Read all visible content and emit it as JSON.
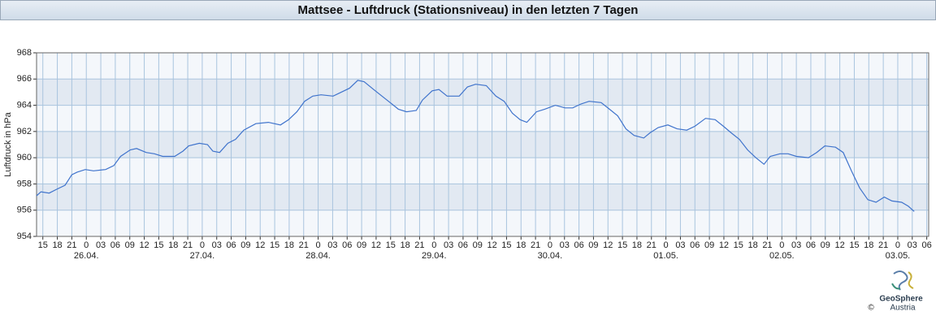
{
  "chart_data": {
    "type": "line",
    "title": "Mattsee - Luftdruck (Stationsniveau) in den letzten 7 Tagen",
    "y_label": "Luftdruck in hPa",
    "x": [
      13.7,
      14.6,
      16.3,
      17.9,
      19.6,
      21.0,
      22.1,
      23.8,
      25.5,
      28.0,
      29.7,
      31.1,
      33.1,
      34.4,
      36.4,
      38.1,
      39.8,
      42.3,
      44.0,
      45.2,
      47.4,
      49.1,
      50.2,
      51.6,
      53.3,
      54.9,
      56.6,
      59.1,
      61.7,
      64.2,
      65.9,
      67.6,
      69.2,
      70.9,
      72.6,
      75.1,
      76.8,
      78.5,
      80.2,
      81.5,
      83.5,
      85.2,
      86.9,
      88.6,
      90.3,
      92.3,
      93.6,
      95.6,
      97.0,
      98.7,
      101.2,
      102.9,
      104.6,
      106.8,
      108.8,
      110.5,
      112.2,
      113.8,
      115.2,
      117.2,
      118.9,
      121.1,
      123.1,
      124.7,
      126.4,
      128.1,
      130.6,
      132.3,
      134.0,
      135.7,
      137.4,
      139.4,
      140.7,
      142.4,
      144.4,
      146.3,
      148.3,
      150.0,
      152.2,
      154.2,
      155.9,
      157.5,
      159.2,
      160.9,
      162.6,
      164.3,
      165.6,
      167.6,
      169.3,
      171.0,
      173.5,
      175.2,
      176.9,
      179.1,
      180.7,
      182.4,
      184.1,
      185.8,
      187.5,
      189.2,
      190.8,
      192.8,
      194.2,
      195.4
    ],
    "series": [
      {
        "name": "Luftdruck",
        "color": "#3f73cc",
        "values": [
          957.1,
          957.4,
          957.3,
          957.6,
          957.9,
          958.7,
          958.9,
          959.1,
          959.0,
          959.1,
          959.4,
          960.1,
          960.6,
          960.7,
          960.4,
          960.3,
          960.1,
          960.1,
          960.5,
          960.9,
          961.1,
          961.0,
          960.5,
          960.4,
          961.1,
          961.4,
          962.1,
          962.6,
          962.7,
          962.5,
          962.9,
          963.5,
          964.3,
          964.7,
          964.8,
          964.7,
          965.0,
          965.3,
          965.9,
          965.8,
          965.2,
          964.7,
          964.2,
          963.7,
          963.5,
          963.6,
          964.4,
          965.1,
          965.2,
          964.7,
          964.7,
          965.4,
          965.6,
          965.5,
          964.7,
          964.3,
          963.4,
          962.9,
          962.7,
          963.5,
          963.7,
          964.0,
          963.8,
          963.8,
          964.1,
          964.3,
          964.2,
          963.7,
          963.2,
          962.2,
          961.7,
          961.5,
          961.9,
          962.3,
          962.5,
          962.2,
          962.1,
          962.4,
          963.0,
          962.9,
          962.4,
          961.9,
          961.4,
          960.6,
          960.0,
          959.5,
          960.1,
          960.3,
          960.3,
          960.1,
          960.0,
          960.4,
          960.9,
          960.8,
          960.4,
          959.0,
          957.7,
          956.8,
          956.6,
          957.0,
          956.7,
          956.6,
          956.3,
          955.9
        ]
      }
    ],
    "xlim": [
      13.7,
      198.4
    ],
    "ylim": [
      954,
      968
    ],
    "yticks": [
      954,
      956,
      958,
      960,
      962,
      964,
      966,
      968
    ],
    "xticks": [
      15,
      18,
      21,
      {
        "value": 24,
        "label": "0"
      },
      {
        "value": 27,
        "label": "03"
      },
      {
        "value": 30,
        "label": "06"
      },
      {
        "value": 33,
        "label": "09"
      },
      {
        "value": 36,
        "label": "12"
      },
      {
        "value": 39,
        "label": "15"
      },
      {
        "value": 42,
        "label": "18"
      },
      {
        "value": 45,
        "label": "21"
      },
      {
        "value": 48,
        "label": "0"
      },
      {
        "value": 51,
        "label": "03"
      },
      {
        "value": 54,
        "label": "06"
      },
      {
        "value": 57,
        "label": "09"
      },
      {
        "value": 60,
        "label": "12"
      },
      {
        "value": 63,
        "label": "15"
      },
      {
        "value": 66,
        "label": "18"
      },
      {
        "value": 69,
        "label": "21"
      },
      {
        "value": 72,
        "label": "0"
      },
      {
        "value": 75,
        "label": "03"
      },
      {
        "value": 78,
        "label": "06"
      },
      {
        "value": 81,
        "label": "09"
      },
      {
        "value": 84,
        "label": "12"
      },
      {
        "value": 87,
        "label": "15"
      },
      {
        "value": 90,
        "label": "18"
      },
      {
        "value": 93,
        "label": "21"
      },
      {
        "value": 96,
        "label": "0"
      },
      {
        "value": 99,
        "label": "03"
      },
      {
        "value": 102,
        "label": "06"
      },
      {
        "value": 105,
        "label": "09"
      },
      {
        "value": 108,
        "label": "12"
      },
      {
        "value": 111,
        "label": "15"
      },
      {
        "value": 114,
        "label": "18"
      },
      {
        "value": 117,
        "label": "21"
      },
      {
        "value": 120,
        "label": "0"
      },
      {
        "value": 123,
        "label": "03"
      },
      {
        "value": 126,
        "label": "06"
      },
      {
        "value": 129,
        "label": "09"
      },
      {
        "value": 132,
        "label": "12"
      },
      {
        "value": 135,
        "label": "15"
      },
      {
        "value": 138,
        "label": "18"
      },
      {
        "value": 141,
        "label": "21"
      },
      {
        "value": 144,
        "label": "0"
      },
      {
        "value": 147,
        "label": "03"
      },
      {
        "value": 150,
        "label": "06"
      },
      {
        "value": 153,
        "label": "09"
      },
      {
        "value": 156,
        "label": "12"
      },
      {
        "value": 159,
        "label": "15"
      },
      {
        "value": 162,
        "label": "18"
      },
      {
        "value": 165,
        "label": "21"
      },
      {
        "value": 168,
        "label": "0"
      },
      {
        "value": 171,
        "label": "03"
      },
      {
        "value": 174,
        "label": "06"
      },
      {
        "value": 177,
        "label": "09"
      },
      {
        "value": 180,
        "label": "12"
      },
      {
        "value": 183,
        "label": "15"
      },
      {
        "value": 186,
        "label": "18"
      },
      {
        "value": 189,
        "label": "21"
      },
      {
        "value": 192,
        "label": "0"
      },
      {
        "value": 195,
        "label": "03"
      },
      {
        "value": 198,
        "label": "06"
      }
    ],
    "date_labels": [
      {
        "value": 24,
        "label": "26.04."
      },
      {
        "value": 48,
        "label": "27.04."
      },
      {
        "value": 72,
        "label": "28.04."
      },
      {
        "value": 96,
        "label": "29.04."
      },
      {
        "value": 120,
        "label": "30.04."
      },
      {
        "value": 144,
        "label": "01.05."
      },
      {
        "value": 168,
        "label": "02.05."
      },
      {
        "value": 192,
        "label": "03.05."
      }
    ],
    "grid": true,
    "logo": {
      "name": "GeoSphere",
      "sub": "Austria",
      "copyright": "©"
    }
  }
}
